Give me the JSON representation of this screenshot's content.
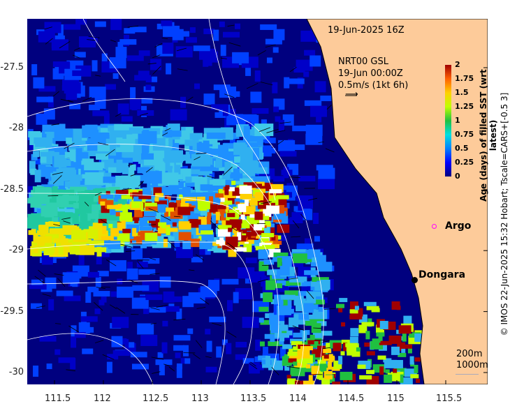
{
  "header": {
    "datetime": "19-Jun-2025 16Z"
  },
  "currents": {
    "source": "NRT00 GSL",
    "time": "19-Jun 00:00Z",
    "scale": "0.5m/s (1kt 6h)"
  },
  "colorbar": {
    "title": "Age (days) of filled SST (wrt latest)",
    "ticks": [
      "2",
      "1.75",
      "1.5",
      "1.25",
      "1",
      "0.75",
      "0.5",
      "0.25",
      "0"
    ],
    "range": [
      0,
      2
    ],
    "colors": [
      "#00007f",
      "#0000ff",
      "#0080ff",
      "#00e0e0",
      "#20c040",
      "#c0ff00",
      "#ffd000",
      "#ff6000",
      "#a00000"
    ]
  },
  "markers": [
    {
      "label": "Argo",
      "color": "#ff00ff"
    },
    {
      "label": "Dongara",
      "color": "#000000"
    }
  ],
  "contour_legend": [
    "200m",
    "1000m"
  ],
  "credit": "© IMOS 22-Jun-2025 15:32 Hobart; Tscale=CARS+[-0.5 3]",
  "axes": {
    "x_ticks": [
      "111.5",
      "112",
      "112.5",
      "113",
      "113.5",
      "114",
      "114.5",
      "115",
      "115.5"
    ],
    "y_ticks": [
      "-27.5",
      "-28",
      "-28.5",
      "-29",
      "-29.5",
      "-30"
    ],
    "lon_range": [
      111.22,
      115.6
    ],
    "lat_range": [
      -27.1,
      -30.1
    ]
  },
  "colors": {
    "land": "#fdcb9a",
    "ocean": "#00007f"
  }
}
